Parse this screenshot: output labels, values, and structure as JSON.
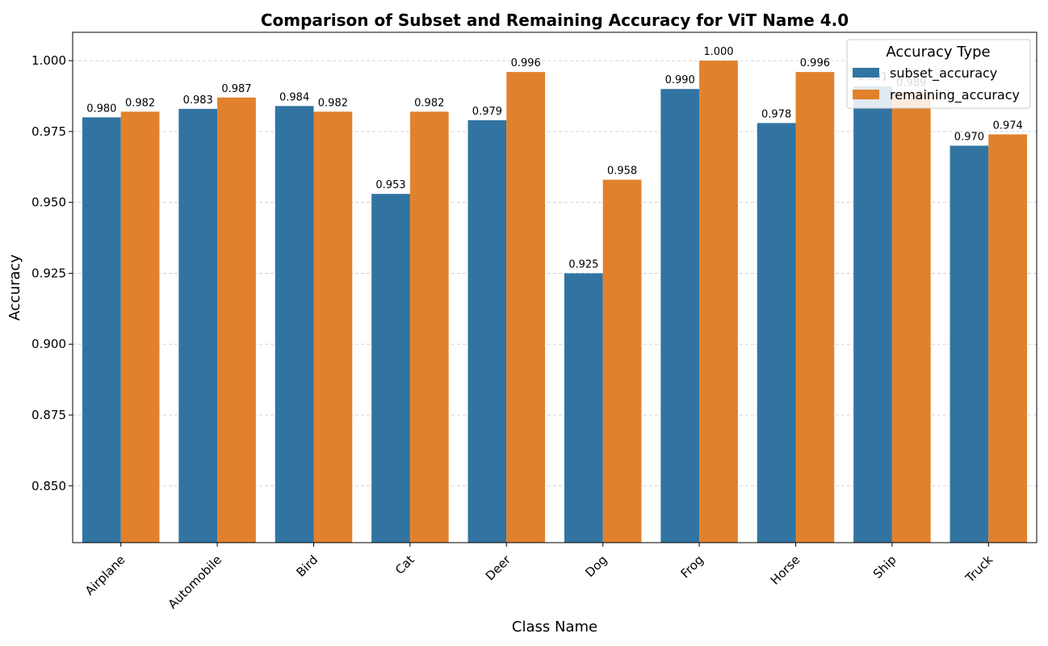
{
  "chart_data": {
    "type": "bar",
    "title": "Comparison of Subset and Remaining Accuracy for ViT Name 4.0",
    "xlabel": "Class Name",
    "ylabel": "Accuracy",
    "categories": [
      "Airplane",
      "Automobile",
      "Bird",
      "Cat",
      "Deer",
      "Dog",
      "Frog",
      "Horse",
      "Ship",
      "Truck"
    ],
    "series": [
      {
        "name": "subset_accuracy",
        "color": "#3274a1",
        "values": [
          0.98,
          0.983,
          0.984,
          0.953,
          0.979,
          0.925,
          0.99,
          0.978,
          0.991,
          0.97
        ]
      },
      {
        "name": "remaining_accuracy",
        "color": "#e1812c",
        "values": [
          0.982,
          0.987,
          0.982,
          0.982,
          0.996,
          0.958,
          1.0,
          0.996,
          0.989,
          0.974
        ]
      }
    ],
    "ylim": [
      0.83,
      1.01
    ],
    "yticks": [
      0.85,
      0.875,
      0.9,
      0.925,
      0.95,
      0.975,
      1.0
    ],
    "grid": "y-dashed",
    "legend": {
      "title": "Accuracy Type",
      "placement": "top-right"
    }
  }
}
